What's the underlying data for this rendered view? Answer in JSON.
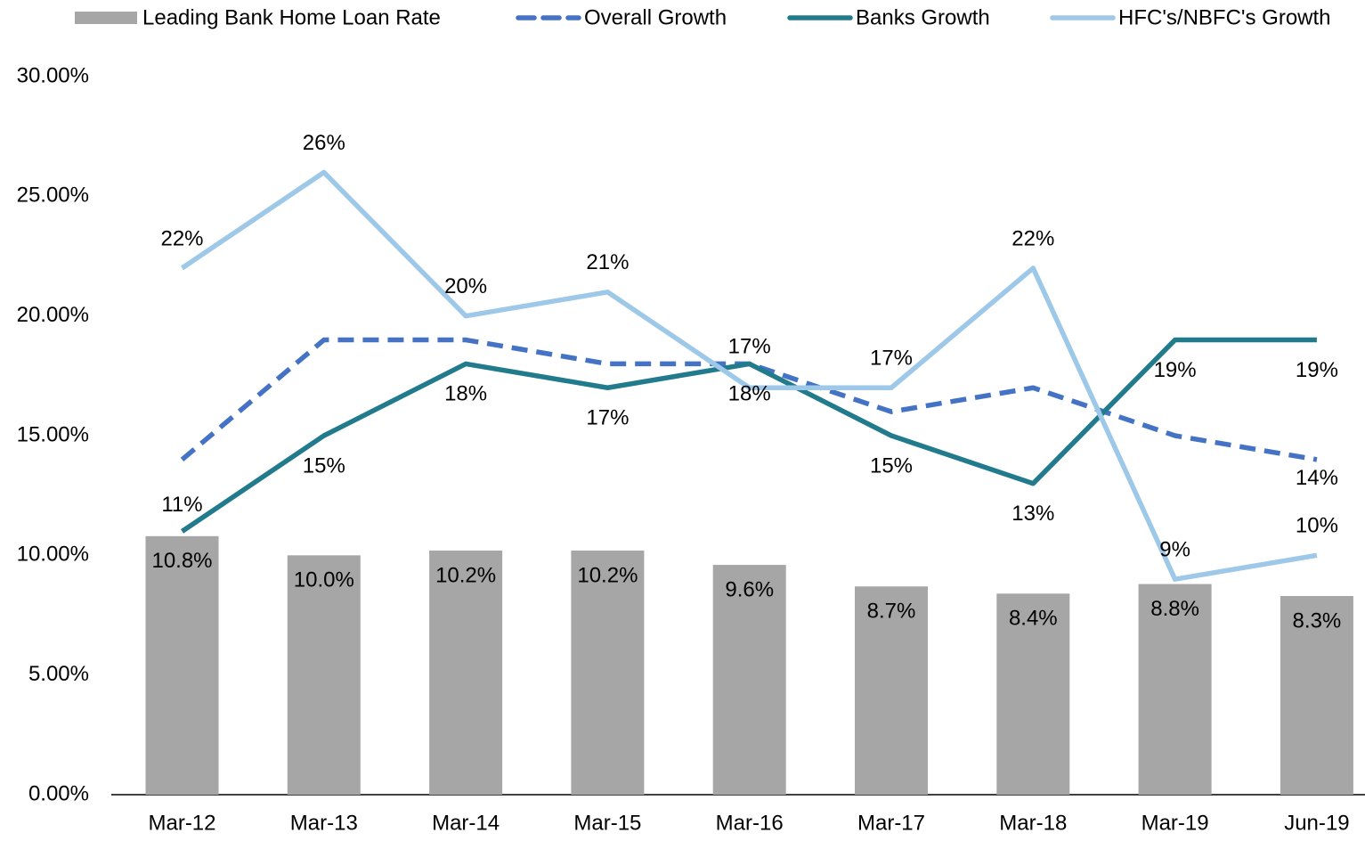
{
  "chart_data": {
    "type": "bar",
    "categories": [
      "Mar-12",
      "Mar-13",
      "Mar-14",
      "Mar-15",
      "Mar-16",
      "Mar-17",
      "Mar-18",
      "Mar-19",
      "Jun-19"
    ],
    "series": [
      {
        "name": "Leading Bank Home Loan Rate",
        "type": "bar",
        "color": "#a6a6a6",
        "values": [
          10.8,
          10.0,
          10.2,
          10.2,
          9.6,
          8.7,
          8.4,
          8.8,
          8.3
        ],
        "value_labels": [
          "10.8%",
          "10.0%",
          "10.2%",
          "10.2%",
          "9.6%",
          "8.7%",
          "8.4%",
          "8.8%",
          "8.3%"
        ]
      },
      {
        "name": "Overall Growth",
        "type": "line",
        "dashed": true,
        "color": "#4472c4",
        "values": [
          14,
          19,
          19,
          18,
          18,
          16,
          17,
          15,
          14
        ],
        "value_labels": [
          null,
          null,
          null,
          null,
          null,
          null,
          null,
          null,
          "14%"
        ]
      },
      {
        "name": "Banks Growth",
        "type": "line",
        "color": "#217b8c",
        "values": [
          11,
          15,
          18,
          17,
          18,
          15,
          13,
          19,
          19
        ],
        "value_labels": [
          "11%",
          "15%",
          "18%",
          "17%",
          "18%",
          "15%",
          "13%",
          "19%",
          "19%"
        ]
      },
      {
        "name": "HFC's/NBFC's Growth",
        "type": "line",
        "color": "#9dc8e8",
        "values": [
          22,
          26,
          20,
          21,
          17,
          17,
          22,
          9,
          10
        ],
        "value_labels": [
          "22%",
          "26%",
          "20%",
          "21%",
          "17%",
          "17%",
          "22%",
          "9%",
          "10%"
        ]
      }
    ],
    "ylim": [
      0,
      30
    ],
    "yticks": [
      {
        "value": 0,
        "label": "0.00%"
      },
      {
        "value": 5,
        "label": "5.00%"
      },
      {
        "value": 10,
        "label": "10.00%"
      },
      {
        "value": 15,
        "label": "15.00%"
      },
      {
        "value": 20,
        "label": "20.00%"
      },
      {
        "value": 25,
        "label": "25.00%"
      },
      {
        "value": 30,
        "label": "30.00%"
      }
    ],
    "grid": false,
    "legend": "top"
  }
}
